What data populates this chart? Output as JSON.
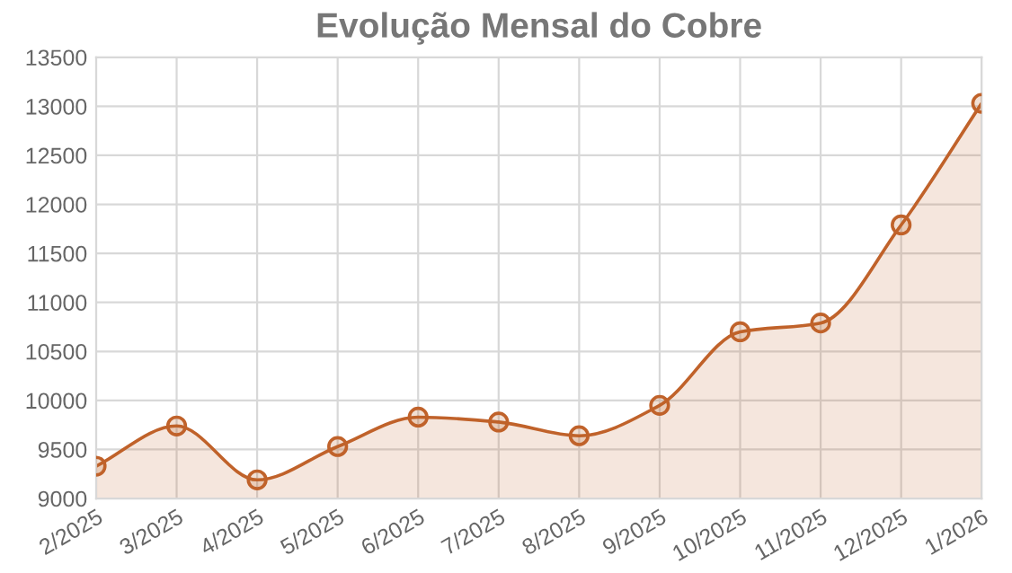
{
  "chart_data": {
    "type": "area",
    "title": "Evolução Mensal do Cobre",
    "categories": [
      "2/2025",
      "3/2025",
      "4/2025",
      "5/2025",
      "6/2025",
      "7/2025",
      "8/2025",
      "9/2025",
      "10/2025",
      "11/2025",
      "12/2025",
      "1/2026"
    ],
    "series": [
      {
        "color": "#c0622a",
        "values": [
          9330,
          9740,
          9190,
          9530,
          9830,
          9780,
          9640,
          9950,
          10700,
          10790,
          11790,
          13030
        ]
      }
    ],
    "ylim": [
      9000,
      13500
    ],
    "yticks": [
      9000,
      9500,
      10000,
      10500,
      11000,
      11500,
      12000,
      12500,
      13000,
      13500
    ],
    "grid": true,
    "marker": "circle",
    "line_style": "solid"
  }
}
